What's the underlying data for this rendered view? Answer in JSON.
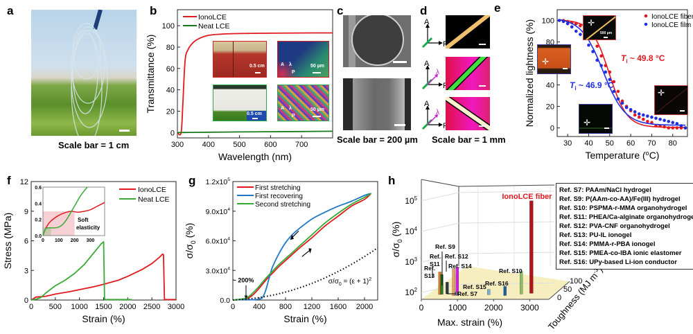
{
  "panels": {
    "a": {
      "letter": "a",
      "caption": "Scale bar = 1 cm"
    },
    "b": {
      "letter": "b"
    },
    "c": {
      "letter": "c",
      "caption": "Scale bar = 200 µm"
    },
    "d": {
      "letter": "d",
      "caption": "Scale bar = 1 mm",
      "axis_labels": {
        "A": "A",
        "P": "P",
        "lambda": "λ"
      }
    },
    "e": {
      "letter": "e"
    },
    "f": {
      "letter": "f"
    },
    "g": {
      "letter": "g"
    },
    "h": {
      "letter": "h"
    }
  },
  "inset_labels": {
    "b_scale_cm": "0.5 cm",
    "b_scale_um": "50 µm",
    "b_A": "A",
    "b_lambda": "λ",
    "b_P": "P",
    "e_scale": "500 µm"
  },
  "colors": {
    "red": "#e0191e",
    "green": "#1a7a1a",
    "blue": "#1f2fe0",
    "green_f": "#3aa935",
    "blue_g": "#1f77c8",
    "darkred": "#b5121b",
    "magenta": "#d01be0"
  },
  "chart_data": [
    {
      "id": "b",
      "type": "line",
      "xlabel": "Wavelength (nm)",
      "ylabel": "Transmittance (%)",
      "xlim": [
        300,
        800
      ],
      "ylim": [
        -5,
        115
      ],
      "xticks": [
        300,
        400,
        500,
        600,
        700
      ],
      "yticks": [
        0,
        20,
        40,
        60,
        80,
        100
      ],
      "legend": "top-left",
      "series": [
        {
          "name": "IonoLCE",
          "color": "#e0191e",
          "x": [
            300,
            312,
            318,
            325,
            335,
            350,
            370,
            400,
            450,
            500,
            600,
            700,
            800
          ],
          "y": [
            0,
            0,
            30,
            68,
            78,
            84,
            88,
            91,
            92.3,
            92.7,
            93,
            93.2,
            93.3
          ]
        },
        {
          "name": "Neat LCE",
          "color": "#1a7a1a",
          "x": [
            300,
            400,
            500,
            600,
            700,
            800
          ],
          "y": [
            0,
            0.3,
            0.6,
            0.8,
            1.0,
            1.2
          ]
        }
      ]
    },
    {
      "id": "e",
      "type": "scatter",
      "xlabel": "Temperature (°C)",
      "ylabel": "Normalized lightness (%)",
      "xlim": [
        25,
        87
      ],
      "ylim": [
        -8,
        110
      ],
      "xticks": [
        30,
        40,
        50,
        60,
        70,
        80
      ],
      "yticks": [
        0,
        20,
        40,
        60,
        80,
        100
      ],
      "legend": "top-right",
      "annotations": [
        {
          "text": "T",
          "sub": "i",
          "rest": " ~ 49.8 °C",
          "color": "#e0191e"
        },
        {
          "text": "T",
          "sub": "i",
          "rest": " ~ 46.9 °C",
          "color": "#1f2fe0"
        }
      ],
      "series": [
        {
          "name": "IonoLCE fiber",
          "color": "#e0191e",
          "Ti": 49.8,
          "x": [
            28,
            30,
            32,
            34,
            36,
            38,
            40,
            42,
            44,
            46,
            48,
            50,
            52,
            54,
            56,
            58,
            60,
            62,
            64,
            66,
            68,
            70,
            72,
            74,
            76,
            78,
            80,
            82,
            84,
            86
          ],
          "y": [
            100,
            99,
            98,
            97,
            95,
            94,
            91,
            86,
            76,
            67,
            58,
            52,
            43,
            34,
            25,
            20,
            16,
            12,
            10,
            8,
            6,
            5,
            2,
            2,
            1,
            0,
            0,
            0,
            0,
            0
          ]
        },
        {
          "name": "IonoLCE film",
          "color": "#1f2fe0",
          "Ti": 46.9,
          "x": [
            26,
            28,
            30,
            32,
            34,
            36,
            38,
            40,
            42,
            44,
            46,
            48,
            50,
            52,
            54,
            56,
            58,
            60,
            62,
            64,
            66,
            68,
            70,
            72,
            74,
            76,
            78,
            80,
            82,
            84,
            86
          ],
          "y": [
            100,
            99,
            97,
            94,
            90,
            87,
            83,
            77,
            71,
            63,
            58,
            52,
            45,
            34,
            27,
            23,
            19,
            17,
            15,
            13,
            12,
            11,
            10,
            9,
            8,
            7,
            6,
            5,
            4,
            2,
            0
          ]
        }
      ]
    },
    {
      "id": "f",
      "type": "line",
      "xlabel": "Strain (%)",
      "ylabel": "Stress (MPa)",
      "xlim": [
        0,
        3000
      ],
      "ylim": [
        0,
        12
      ],
      "xticks": [
        0,
        500,
        1000,
        1500,
        2000,
        2500,
        3000
      ],
      "yticks": [
        0,
        3,
        6,
        9,
        12
      ],
      "legend": "top-right",
      "series": [
        {
          "name": "IonoLCE",
          "color": "#e0191e",
          "x": [
            0,
            100,
            300,
            500,
            800,
            1000,
            1300,
            1500,
            1800,
            2000,
            2300,
            2500,
            2650,
            2720,
            2740,
            2760,
            3000
          ],
          "y": [
            0,
            0.3,
            0.38,
            0.6,
            0.85,
            1.05,
            1.35,
            1.6,
            2.0,
            2.4,
            3.1,
            3.7,
            4.3,
            4.65,
            4.6,
            0.05,
            0.05
          ]
        },
        {
          "name": "Neat LCE",
          "color": "#3aa935",
          "x": [
            0,
            100,
            200,
            300,
            500,
            700,
            900,
            1100,
            1300,
            1450,
            1500,
            1510,
            1520,
            2080
          ],
          "y": [
            0,
            0.08,
            0.25,
            0.7,
            1.45,
            2.0,
            2.7,
            3.6,
            4.8,
            5.7,
            5.9,
            3,
            0.05,
            0.05
          ]
        }
      ],
      "inset": {
        "xlim": [
          0,
          390
        ],
        "ylim": [
          0,
          0.6
        ],
        "xticks": [
          0,
          100,
          200,
          300
        ],
        "yticks": [
          0.0,
          0.2,
          0.4,
          0.6
        ],
        "annotation": [
          "Soft",
          "elasticity"
        ],
        "shaded_region": {
          "x": [
            0,
            200
          ],
          "y": [
            0,
            0.3
          ]
        },
        "series": [
          {
            "name": "IonoLCE",
            "color": "#e0191e",
            "x": [
              0,
              20,
              50,
              100,
              150,
              180,
              220,
              260,
              300,
              340,
              390
            ],
            "y": [
              0,
              0.1,
              0.18,
              0.25,
              0.29,
              0.3,
              0.29,
              0.3,
              0.32,
              0.36,
              0.41
            ]
          },
          {
            "name": "Neat LCE",
            "color": "#3aa935",
            "x": [
              0,
              15,
              30,
              60,
              90,
              120,
              150,
              180,
              210,
              240,
              280
            ],
            "y": [
              0,
              0.08,
              0.095,
              0.095,
              0.1,
              0.13,
              0.2,
              0.3,
              0.4,
              0.5,
              0.6
            ]
          }
        ]
      }
    },
    {
      "id": "g",
      "type": "line",
      "xlabel": "Strain (%)",
      "ylabel": "σ/σ0 (%)",
      "xlim": [
        0,
        2200
      ],
      "ylim": [
        0,
        120000
      ],
      "xticks": [
        0,
        400,
        800,
        1200,
        1600,
        2000
      ],
      "yticks": [
        0,
        30000,
        60000,
        90000,
        120000
      ],
      "ytick_labels": [
        "0.0",
        "3.0x10^4",
        "6.0x10^4",
        "9.0x10^4",
        "1.2x10^5"
      ],
      "legend": "top-left",
      "annotations": [
        {
          "text": "~ 200%",
          "x": 200
        },
        {
          "text": "σ/σ0 = (ε + 1)^2"
        }
      ],
      "series": [
        {
          "name": "First stretching",
          "color": "#e0191e",
          "x": [
            0,
            200,
            300,
            400,
            500,
            600,
            700,
            800,
            1000,
            1200,
            1400,
            1600,
            1800,
            2000,
            2100
          ],
          "y": [
            0,
            1500,
            5000,
            12000,
            20000,
            27000,
            34000,
            40000,
            52000,
            63000,
            75000,
            85000,
            95000,
            102000,
            108000
          ]
        },
        {
          "name": "First recovering",
          "color": "#1f77c8",
          "x": [
            2100,
            2000,
            1800,
            1600,
            1400,
            1200,
            1000,
            900,
            800,
            700,
            600,
            550,
            500,
            450,
            400,
            300,
            200,
            0
          ],
          "y": [
            108000,
            106000,
            100000,
            95000,
            89000,
            82000,
            72000,
            66000,
            58000,
            47000,
            33000,
            22000,
            10000,
            2500,
            1000,
            300,
            500,
            0
          ]
        },
        {
          "name": "Second stretching",
          "color": "#33aa33",
          "x": [
            0,
            200,
            300,
            400,
            500,
            600,
            700,
            800,
            1000,
            1200,
            1400,
            1600,
            1800,
            2000,
            2100
          ],
          "y": [
            0,
            2000,
            7000,
            14000,
            22000,
            29000,
            36000,
            42000,
            54000,
            66000,
            78000,
            88000,
            97000,
            104000,
            108000
          ]
        },
        {
          "name": "(ε+1)^2",
          "style": "dotted",
          "color": "#000000",
          "formula": "(x/100+1)^2*100"
        }
      ]
    },
    {
      "id": "h",
      "type": "bar3d",
      "xlabel": "Max. strain (%)",
      "ylabel": "σ/σ0 (%)",
      "zlabel": "Toughness (MJ m^-3)",
      "xlim": [
        0,
        3300
      ],
      "ylim_log": [
        60,
        500000
      ],
      "zlim": [
        0,
        120
      ],
      "xticks": [
        0,
        1000,
        2000,
        3000
      ],
      "yticks": [
        100,
        1000,
        10000,
        100000
      ],
      "ytick_labels": [
        "10^2",
        "10^3",
        "10^4",
        "10^5"
      ],
      "zticks": [
        0,
        50,
        100
      ],
      "highlight_label": "IonoLCE fiber",
      "bars": [
        {
          "label": "Ref. S13",
          "strain": 400,
          "ratio": 280,
          "color": "#e07b19"
        },
        {
          "label": "Ref. S11",
          "strain": 450,
          "ratio": 230,
          "color": "#2a7a2a"
        },
        {
          "label": "Ref. S9",
          "strain": 600,
          "ratio": 130,
          "color": "#2b3a4a"
        },
        {
          "label": "Ref. S12",
          "strain": 780,
          "ratio": 360,
          "color": "#e8a060"
        },
        {
          "label": "Ref. S14",
          "strain": 880,
          "ratio": 400,
          "color": "#d01be0"
        },
        {
          "label": "Ref. S7",
          "strain": 850,
          "ratio": 62,
          "color": "#7a6a9a"
        },
        {
          "label": "Ref. S15",
          "strain": 1750,
          "ratio": 75,
          "color": "#7ab0d8"
        },
        {
          "label": "Ref. S16",
          "strain": 2200,
          "ratio": 95,
          "color": "#1f5f9f"
        },
        {
          "label": "Ref. S10",
          "strain": 2650,
          "ratio": 290,
          "color": "#8cc060"
        },
        {
          "label": "IonoLCE fiber",
          "strain": 3000,
          "ratio": 100000,
          "color": "#b5121b"
        }
      ],
      "legend_entries": [
        "Ref. S7: PAAm/NaCl hydrogel",
        "Ref. S9: P(AAm-co-AA)/Fe(III) hydrogel",
        "Ref. S10: PSPMA-r-MMA organohydrogel",
        "Ref. S11: PHEA/Ca-alginate organohydrogel",
        "Ref. S12: PVA-CNF organohydrogel",
        "Ref. S13: PU-IL ionogel",
        "Ref. S14: PMMA-r-PBA ionogel",
        "Ref. S15: PMEA-co-IBA ionic elastomer",
        "Ref. S16: UPy-based Li-ion conductor"
      ]
    }
  ]
}
